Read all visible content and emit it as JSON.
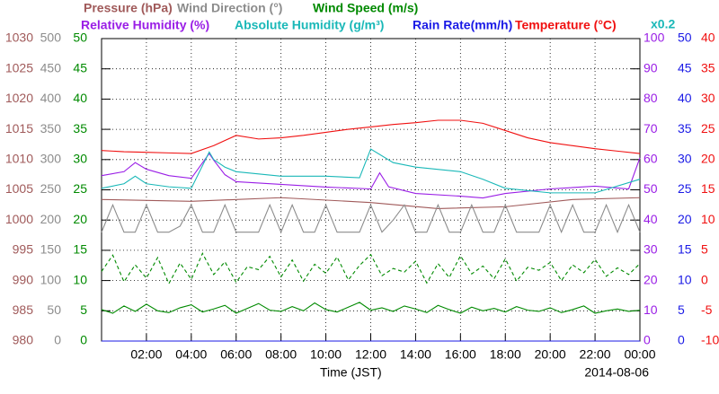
{
  "chart_data": {
    "type": "line",
    "xlabel": "Time (JST)",
    "date": "2014-08-06",
    "annotation": "x0.2",
    "xlim": [
      0,
      24
    ],
    "xticks": [
      {
        "value": 2,
        "label": "02:00"
      },
      {
        "value": 4,
        "label": "04:00"
      },
      {
        "value": 6,
        "label": "06:00"
      },
      {
        "value": 8,
        "label": "08:00"
      },
      {
        "value": 10,
        "label": "10:00"
      },
      {
        "value": 12,
        "label": "12:00"
      },
      {
        "value": 14,
        "label": "14:00"
      },
      {
        "value": 16,
        "label": "16:00"
      },
      {
        "value": 18,
        "label": "18:00"
      },
      {
        "value": 20,
        "label": "20:00"
      },
      {
        "value": 22,
        "label": "22:00"
      },
      {
        "value": 24,
        "label": "00:00"
      }
    ],
    "grid": true,
    "axes": [
      {
        "side": "left",
        "color": "#a05a5a",
        "lim": [
          980,
          1030
        ],
        "ticks": [
          980,
          985,
          990,
          995,
          1000,
          1005,
          1010,
          1015,
          1020,
          1025,
          1030
        ]
      },
      {
        "side": "left",
        "color": "#8c8c8c",
        "lim": [
          0,
          500
        ],
        "ticks": [
          0,
          50,
          100,
          150,
          200,
          250,
          300,
          350,
          400,
          450,
          500
        ]
      },
      {
        "side": "left",
        "color": "#008a00",
        "lim": [
          0,
          50
        ],
        "ticks": [
          0,
          5,
          10,
          15,
          20,
          25,
          30,
          35,
          40,
          45,
          50
        ]
      },
      {
        "side": "right",
        "color": "#9a1ee6",
        "lim": [
          0,
          100
        ],
        "ticks": [
          0,
          10,
          20,
          30,
          40,
          50,
          60,
          70,
          80,
          90,
          100
        ]
      },
      {
        "side": "right",
        "color": "#1a1ae6",
        "lim": [
          0,
          50
        ],
        "ticks": [
          0,
          5,
          10,
          15,
          20,
          25,
          30,
          35,
          40,
          45,
          50
        ]
      },
      {
        "side": "right",
        "color": "#f01010",
        "lim": [
          -10,
          40
        ],
        "ticks": [
          -10,
          -5,
          0,
          5,
          10,
          15,
          20,
          25,
          30,
          35,
          40
        ]
      }
    ],
    "series": [
      {
        "name": "Pressure (hPa)",
        "color": "#a05a5a",
        "axis": 0,
        "x": [
          0,
          4,
          8,
          12,
          15,
          18,
          21,
          24
        ],
        "values": [
          1003.4,
          1003.1,
          1003.7,
          1002.9,
          1001.9,
          1002.2,
          1003.4,
          1003.7
        ]
      },
      {
        "name": "Wind Direction (°)",
        "color": "#8c8c8c",
        "axis": 1,
        "x": [
          0,
          0.5,
          1,
          1.5,
          2,
          2.5,
          3,
          3.5,
          4,
          4.5,
          5,
          5.5,
          6,
          6.5,
          7,
          7.5,
          8,
          8.5,
          9,
          9.5,
          10,
          10.5,
          11,
          11.5,
          12,
          12.5,
          13,
          13.5,
          14,
          14.5,
          15,
          15.5,
          16,
          16.5,
          17,
          17.5,
          18,
          18.5,
          19,
          19.5,
          20,
          20.5,
          21,
          21.5,
          22,
          22.5,
          23,
          23.5,
          24
        ],
        "values": [
          180,
          225,
          180,
          180,
          225,
          180,
          180,
          190,
          225,
          180,
          180,
          225,
          180,
          180,
          180,
          225,
          180,
          225,
          180,
          180,
          225,
          180,
          180,
          180,
          225,
          180,
          200,
          225,
          180,
          180,
          225,
          180,
          180,
          225,
          180,
          180,
          225,
          180,
          180,
          180,
          225,
          180,
          225,
          180,
          180,
          225,
          180,
          225,
          180
        ]
      },
      {
        "name": "Wind Speed (m/s)",
        "color": "#008a00",
        "axis": 2,
        "x": [
          0,
          0.5,
          1,
          1.5,
          2,
          2.5,
          3,
          3.5,
          4,
          4.5,
          5,
          5.5,
          6,
          6.5,
          7,
          7.5,
          8,
          8.5,
          9,
          9.5,
          10,
          10.5,
          11,
          11.5,
          12,
          12.5,
          13,
          13.5,
          14,
          14.5,
          15,
          15.5,
          16,
          16.5,
          17,
          17.5,
          18,
          18.5,
          19,
          19.5,
          20,
          20.5,
          21,
          21.5,
          22,
          22.5,
          23,
          23.5,
          24
        ],
        "values": [
          5.2,
          4.6,
          5.8,
          4.9,
          6.1,
          5.0,
          4.7,
          5.5,
          6.0,
          4.8,
          5.3,
          5.9,
          4.6,
          5.4,
          6.2,
          5.1,
          4.9,
          5.7,
          5.0,
          6.3,
          5.2,
          4.8,
          5.6,
          6.4,
          5.1,
          5.5,
          4.9,
          5.8,
          5.3,
          4.7,
          5.9,
          5.2,
          4.6,
          5.6,
          5.0,
          5.4,
          4.8,
          5.7,
          5.1,
          4.9,
          5.5,
          4.7,
          5.2,
          5.8,
          4.6,
          5.0,
          5.3,
          4.9,
          5.1
        ]
      },
      {
        "color": "#008a00",
        "axis": 2,
        "dashed": true,
        "x": [
          0,
          0.5,
          1,
          1.5,
          2,
          2.5,
          3,
          3.5,
          4,
          4.5,
          5,
          5.5,
          6,
          6.5,
          7,
          7.5,
          8,
          8.5,
          9,
          9.5,
          10,
          10.5,
          11,
          11.5,
          12,
          12.5,
          13,
          13.5,
          14,
          14.5,
          15,
          15.5,
          16,
          16.5,
          17,
          17.5,
          18,
          18.5,
          19,
          19.5,
          20,
          20.5,
          21,
          21.5,
          22,
          22.5,
          23,
          23.5,
          24
        ],
        "values": [
          11.5,
          14.2,
          9.8,
          12.6,
          10.4,
          13.8,
          9.5,
          12.9,
          10.2,
          14.5,
          11.0,
          13.1,
          9.7,
          12.3,
          11.8,
          14.0,
          10.6,
          13.4,
          9.9,
          12.7,
          11.2,
          13.9,
          10.1,
          12.5,
          14.3,
          10.8,
          12.0,
          11.4,
          13.2,
          9.6,
          12.8,
          10.5,
          14.1,
          11.1,
          12.4,
          10.3,
          13.6,
          9.9,
          12.2,
          11.7,
          13.0,
          10.0,
          12.6,
          11.3,
          13.5,
          10.7,
          12.1,
          11.0,
          12.8
        ]
      },
      {
        "name": "Relative Humidity (%)",
        "color": "#9a1ee6",
        "axis": 3,
        "x": [
          0,
          1,
          1.5,
          2,
          3,
          4,
          4.8,
          5,
          5.5,
          6,
          8,
          10,
          12,
          12.4,
          12.8,
          14,
          16,
          17,
          18,
          20,
          22,
          23.5,
          24
        ],
        "values": [
          54.7,
          56,
          59,
          56.8,
          54.7,
          53.8,
          62,
          59.8,
          55,
          52.7,
          51.8,
          50.9,
          50.3,
          55.6,
          51,
          48.8,
          47.9,
          47.3,
          48.8,
          50.3,
          51.2,
          50.3,
          60.6
        ]
      },
      {
        "name": "Absolute Humidity (g/m³)",
        "color": "#1ab8b8",
        "ylim": [
          0,
          20
        ],
        "x": [
          0,
          1,
          1.5,
          2,
          3,
          4,
          4.8,
          5,
          5.5,
          6,
          8,
          10,
          11.5,
          12,
          13,
          14,
          16,
          17,
          18,
          20,
          22,
          24
        ],
        "values": [
          10.1,
          10.4,
          10.9,
          10.4,
          10.2,
          10.1,
          12.5,
          12.0,
          11.5,
          11.2,
          10.9,
          10.9,
          10.8,
          12.7,
          11.8,
          11.5,
          11.2,
          10.7,
          10.1,
          9.8,
          9.8,
          10.7
        ]
      },
      {
        "name": "Rain Rate(mm/h)",
        "color": "#1a1ae6",
        "axis": 4,
        "x": [
          0,
          12,
          24
        ],
        "values": [
          0,
          0,
          0
        ]
      },
      {
        "name": "Temperature (°C)",
        "color": "#f01010",
        "axis": 5,
        "x": [
          0,
          1,
          2,
          3,
          4,
          5,
          6,
          7,
          8,
          9,
          10,
          11,
          12,
          13,
          14,
          15,
          16,
          17,
          18,
          19,
          20,
          21,
          22,
          23,
          24
        ],
        "values": [
          21.5,
          21.3,
          21.2,
          21.1,
          21.0,
          22.3,
          24.0,
          23.4,
          23.6,
          24.0,
          24.5,
          25.0,
          25.4,
          25.8,
          26.1,
          26.5,
          26.5,
          26.0,
          24.8,
          23.6,
          22.8,
          22.3,
          21.8,
          21.4,
          21.0
        ]
      }
    ]
  }
}
